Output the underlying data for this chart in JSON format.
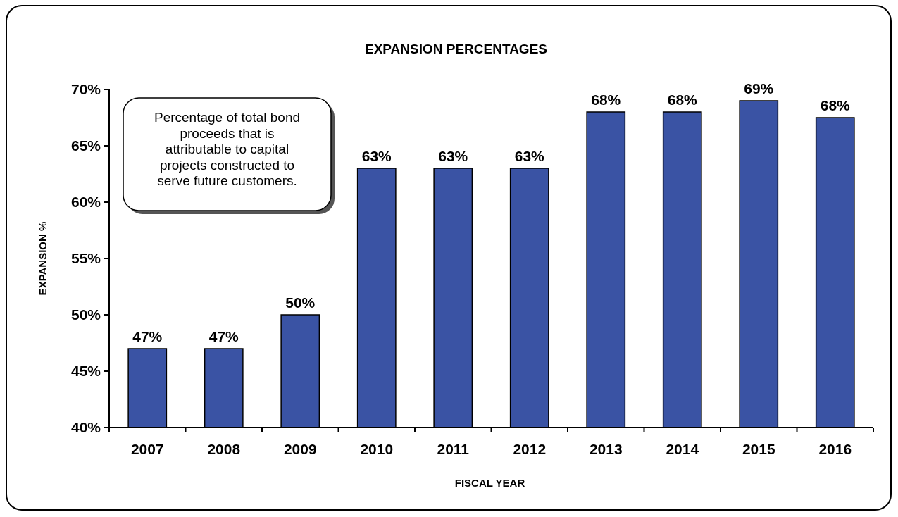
{
  "chart_data": {
    "type": "bar",
    "title": "EXPANSION PERCENTAGES",
    "xlabel": "FISCAL YEAR",
    "ylabel": "EXPANSION %",
    "categories": [
      "2007",
      "2008",
      "2009",
      "2010",
      "2011",
      "2012",
      "2013",
      "2014",
      "2015",
      "2016"
    ],
    "values": [
      47,
      47,
      50,
      63,
      63,
      63,
      68,
      68,
      69,
      67.5
    ],
    "value_labels": [
      "47%",
      "47%",
      "50%",
      "63%",
      "63%",
      "63%",
      "68%",
      "68%",
      "69%",
      "68%"
    ],
    "color": "#3a53a4",
    "ylim": [
      40,
      70
    ],
    "yticks": [
      {
        "value": 40,
        "label": "40%"
      },
      {
        "value": 45,
        "label": "45%"
      },
      {
        "value": 50,
        "label": "50%"
      },
      {
        "value": 55,
        "label": "55%"
      },
      {
        "value": 60,
        "label": "60%"
      },
      {
        "value": 65,
        "label": "65%"
      },
      {
        "value": 70,
        "label": "70%"
      }
    ],
    "annotations": [
      "Percentage of total bond proceeds that is attributable to capital projects constructed to serve future customers."
    ],
    "grid": false
  }
}
